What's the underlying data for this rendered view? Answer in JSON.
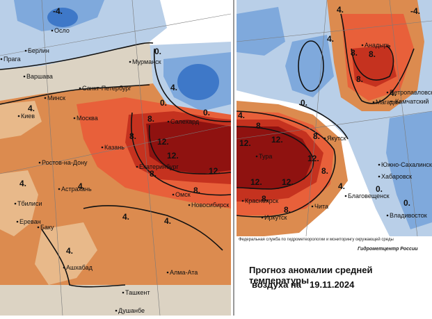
{
  "colors": {
    "very_cold": "#3e78c8",
    "cold": "#7fa9dc",
    "cool": "#b9cfe8",
    "neutral": "#dcd3c3",
    "warm_light": "#e8b98a",
    "warm": "#dc8b4f",
    "hot": "#e8603a",
    "very_hot": "#c5321f",
    "extreme": "#8f1210",
    "contour": "#111111"
  },
  "isolines": {
    "m4": "-4.",
    "zero": "0.",
    "four": "4.",
    "eight": "8.",
    "twelve": "12."
  },
  "cities_left": [
    {
      "name": "Осло"
    },
    {
      "name": "Берлин"
    },
    {
      "name": "Прага"
    },
    {
      "name": "Варшава"
    },
    {
      "name": "Минск"
    },
    {
      "name": "Санкт-Петербург"
    },
    {
      "name": "Мурманск"
    },
    {
      "name": "Киев"
    },
    {
      "name": "Москва"
    },
    {
      "name": "Казань"
    },
    {
      "name": "Салехард"
    },
    {
      "name": "Ростов-на-Дону"
    },
    {
      "name": "Екатеринбург"
    },
    {
      "name": "Астрахань"
    },
    {
      "name": "Омск"
    },
    {
      "name": "Тбилиси"
    },
    {
      "name": "Новосибирск"
    },
    {
      "name": "Ереван"
    },
    {
      "name": "Баку"
    },
    {
      "name": "Ашхабад"
    },
    {
      "name": "Алма-Ата"
    },
    {
      "name": "Ташкент"
    },
    {
      "name": "Душанбе"
    }
  ],
  "cities_right": [
    {
      "name": "Анадырь"
    },
    {
      "name": "Петропавловск"
    },
    {
      "name": "Магадан"
    },
    {
      "name": "-Камчатский"
    },
    {
      "name": "Якутск"
    },
    {
      "name": "Тура"
    },
    {
      "name": "Южно-Сахалинск"
    },
    {
      "name": "Хабаровск"
    },
    {
      "name": "Красноярск"
    },
    {
      "name": "Благовещенск"
    },
    {
      "name": "Чита"
    },
    {
      "name": "Иркутск"
    },
    {
      "name": "Владивосток"
    }
  ],
  "footer": {
    "credit": "Федеральная служба по гидрометеорологии и мониторингу окружающей среды",
    "agency": "Гидрометцентр России",
    "title": "Прогноз аномалии средней температуры",
    "subtitle": "воздуха на",
    "date": "19.11.2024"
  }
}
